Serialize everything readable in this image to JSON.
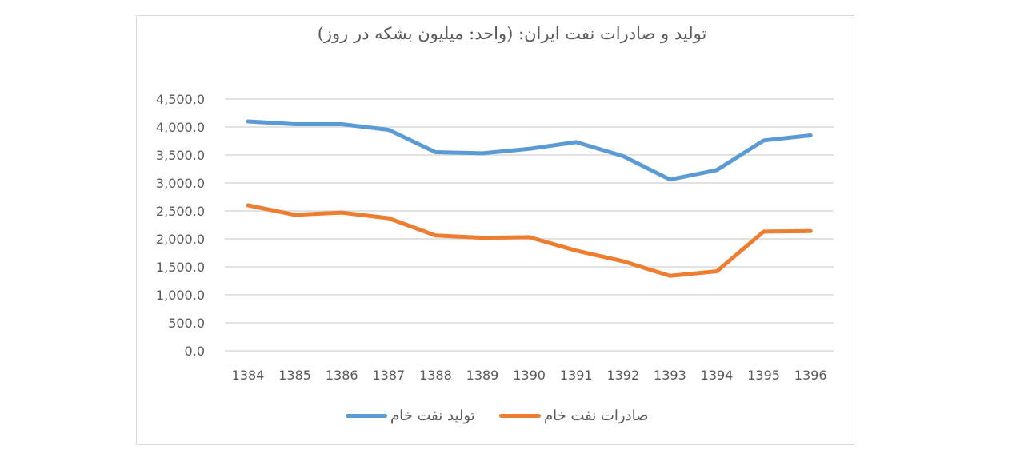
{
  "page": {
    "top_text": "تولید و صادرات نفت ایران"
  },
  "chart_data": {
    "type": "line",
    "title": "تولید و صادرات نفت ایران: (واحد: میلیون بشکه در روز)",
    "xlabel": "",
    "ylabel": "",
    "categories": [
      "1384",
      "1385",
      "1386",
      "1387",
      "1388",
      "1389",
      "1390",
      "1391",
      "1392",
      "1393",
      "1394",
      "1395",
      "1396"
    ],
    "series": [
      {
        "name": "تولید نفت خام",
        "color": "#5B9BD5",
        "values": [
          4100,
          4050,
          4050,
          3950,
          3550,
          3530,
          3610,
          3730,
          3480,
          3060,
          3230,
          3760,
          3850
        ]
      },
      {
        "name": "صادرات نفت خام",
        "color": "#ED7D31",
        "values": [
          2600,
          2430,
          2470,
          2370,
          2060,
          2020,
          2030,
          1790,
          1600,
          1340,
          1420,
          2130,
          2140
        ]
      }
    ],
    "yticks": [
      "4,500.0",
      "4,000.0",
      "3,500.0",
      "3,000.0",
      "2,500.0",
      "2,000.0",
      "1,500.0",
      "1,000.0",
      "500.0",
      "0.0"
    ],
    "ylim": [
      0,
      4500
    ],
    "grid": true,
    "legend_position": "bottom"
  }
}
